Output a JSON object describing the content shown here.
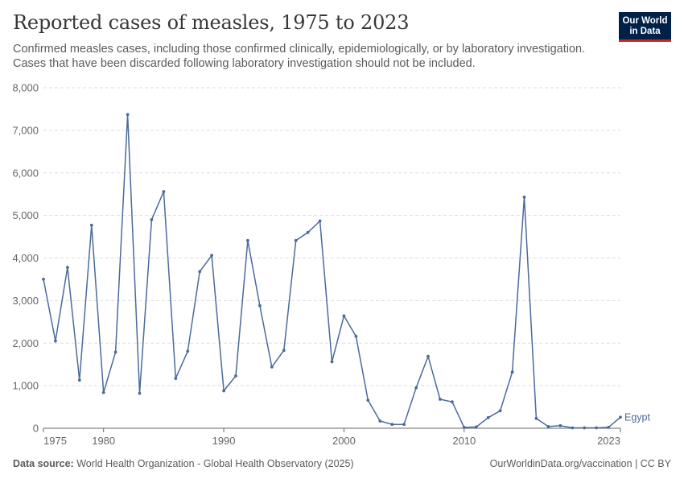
{
  "header": {
    "title": "Reported cases of measles, 1975 to 2023",
    "subtitle": "Confirmed measles cases, including those confirmed clinically, epidemiologically, or by laboratory investigation. Cases that have been discarded following laboratory investigation should not be included."
  },
  "logo": {
    "line1": "Our World",
    "line2": "in Data"
  },
  "footer": {
    "source_label": "Data source:",
    "source_text": "World Health Organization - Global Health Observatory (2025)",
    "url_license": "OurWorldinData.org/vaccination | CC BY"
  },
  "colors": {
    "line": "#4c6a9c",
    "grid": "#dddddd",
    "axis": "#666666"
  },
  "chart_data": {
    "type": "line",
    "xlim": [
      1975,
      2023
    ],
    "ylim": [
      0,
      8000
    ],
    "x_ticks": [
      "1975",
      "1980",
      "1990",
      "2000",
      "2010",
      "2023"
    ],
    "y_ticks": [
      "0",
      "1,000",
      "2,000",
      "3,000",
      "4,000",
      "5,000",
      "6,000",
      "7,000",
      "8,000"
    ],
    "grid": "horizontal dashed",
    "series": [
      {
        "name": "Egypt",
        "x": [
          1975,
          1976,
          1977,
          1978,
          1979,
          1980,
          1981,
          1982,
          1983,
          1984,
          1985,
          1986,
          1987,
          1988,
          1989,
          1990,
          1991,
          1992,
          1993,
          1994,
          1995,
          1996,
          1997,
          1998,
          1999,
          2000,
          2001,
          2002,
          2003,
          2004,
          2005,
          2006,
          2007,
          2008,
          2009,
          2010,
          2011,
          2012,
          2013,
          2014,
          2015,
          2016,
          2017,
          2018,
          2019,
          2020,
          2021,
          2022,
          2023
        ],
        "values": [
          3500,
          2050,
          3780,
          1130,
          4770,
          840,
          1790,
          7370,
          820,
          4900,
          5560,
          1170,
          1810,
          3680,
          4060,
          880,
          1230,
          4410,
          2880,
          1440,
          1830,
          4410,
          4600,
          4870,
          1560,
          2640,
          2160,
          660,
          170,
          90,
          90,
          950,
          1690,
          680,
          620,
          20,
          30,
          250,
          410,
          1320,
          5430,
          230,
          40,
          60,
          10,
          10,
          10,
          20,
          260
        ]
      }
    ]
  }
}
